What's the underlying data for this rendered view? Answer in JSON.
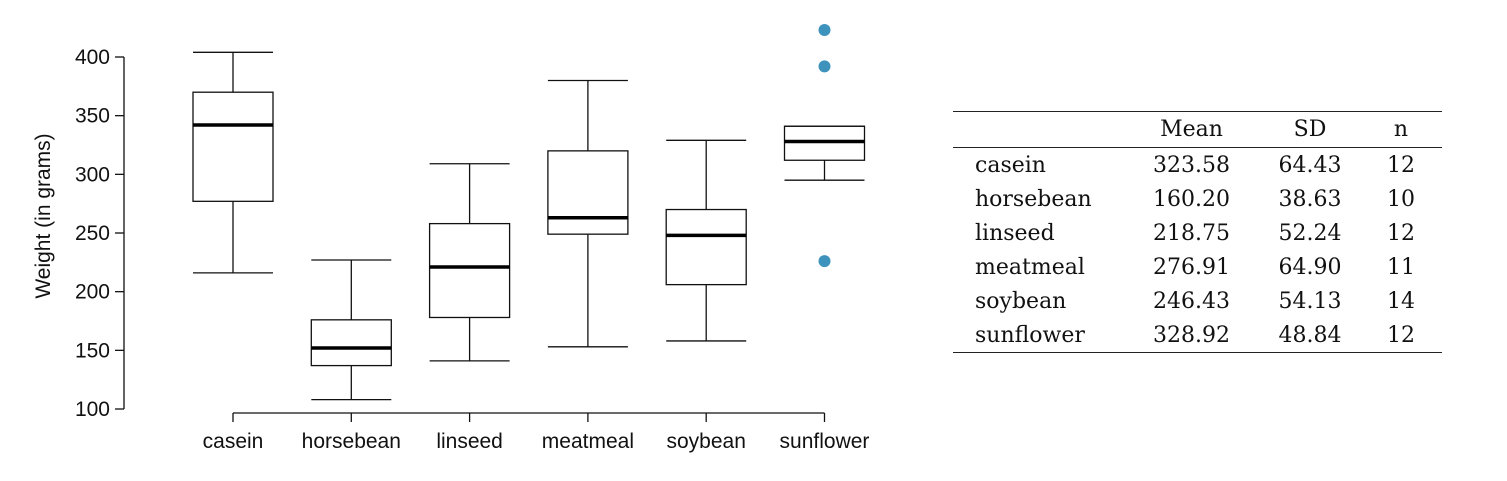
{
  "chart_data": [
    {
      "type": "box",
      "title": "",
      "xlabel": "",
      "ylabel": "Weight (in grams)",
      "ylim": [
        100,
        420
      ],
      "yticks": [
        100,
        150,
        200,
        250,
        300,
        350,
        400
      ],
      "categories": [
        "casein",
        "horsebean",
        "linseed",
        "meatmeal",
        "soybean",
        "sunflower"
      ],
      "boxes": [
        {
          "name": "casein",
          "whisker_low": 216,
          "q1": 277,
          "median": 342,
          "q3": 370,
          "whisker_high": 404,
          "outliers": []
        },
        {
          "name": "horsebean",
          "whisker_low": 108,
          "q1": 137,
          "median": 152,
          "q3": 176,
          "whisker_high": 227,
          "outliers": []
        },
        {
          "name": "linseed",
          "whisker_low": 141,
          "q1": 178,
          "median": 221,
          "q3": 258,
          "whisker_high": 309,
          "outliers": []
        },
        {
          "name": "meatmeal",
          "whisker_low": 153,
          "q1": 249,
          "median": 263,
          "q3": 320,
          "whisker_high": 380,
          "outliers": []
        },
        {
          "name": "soybean",
          "whisker_low": 158,
          "q1": 206,
          "median": 248,
          "q3": 270,
          "whisker_high": 329,
          "outliers": []
        },
        {
          "name": "sunflower",
          "whisker_low": 295,
          "q1": 312,
          "median": 328,
          "q3": 341,
          "whisker_high": 341,
          "outliers": [
            423,
            392,
            226
          ]
        }
      ],
      "outlier_color": "#3e93bd"
    },
    {
      "type": "table",
      "columns": [
        "",
        "Mean",
        "SD",
        "n"
      ],
      "rows": [
        [
          "casein",
          "323.58",
          "64.43",
          "12"
        ],
        [
          "horsebean",
          "160.20",
          "38.63",
          "10"
        ],
        [
          "linseed",
          "218.75",
          "52.24",
          "12"
        ],
        [
          "meatmeal",
          "276.91",
          "64.90",
          "11"
        ],
        [
          "soybean",
          "246.43",
          "54.13",
          "14"
        ],
        [
          "sunflower",
          "328.92",
          "48.84",
          "12"
        ]
      ]
    }
  ]
}
